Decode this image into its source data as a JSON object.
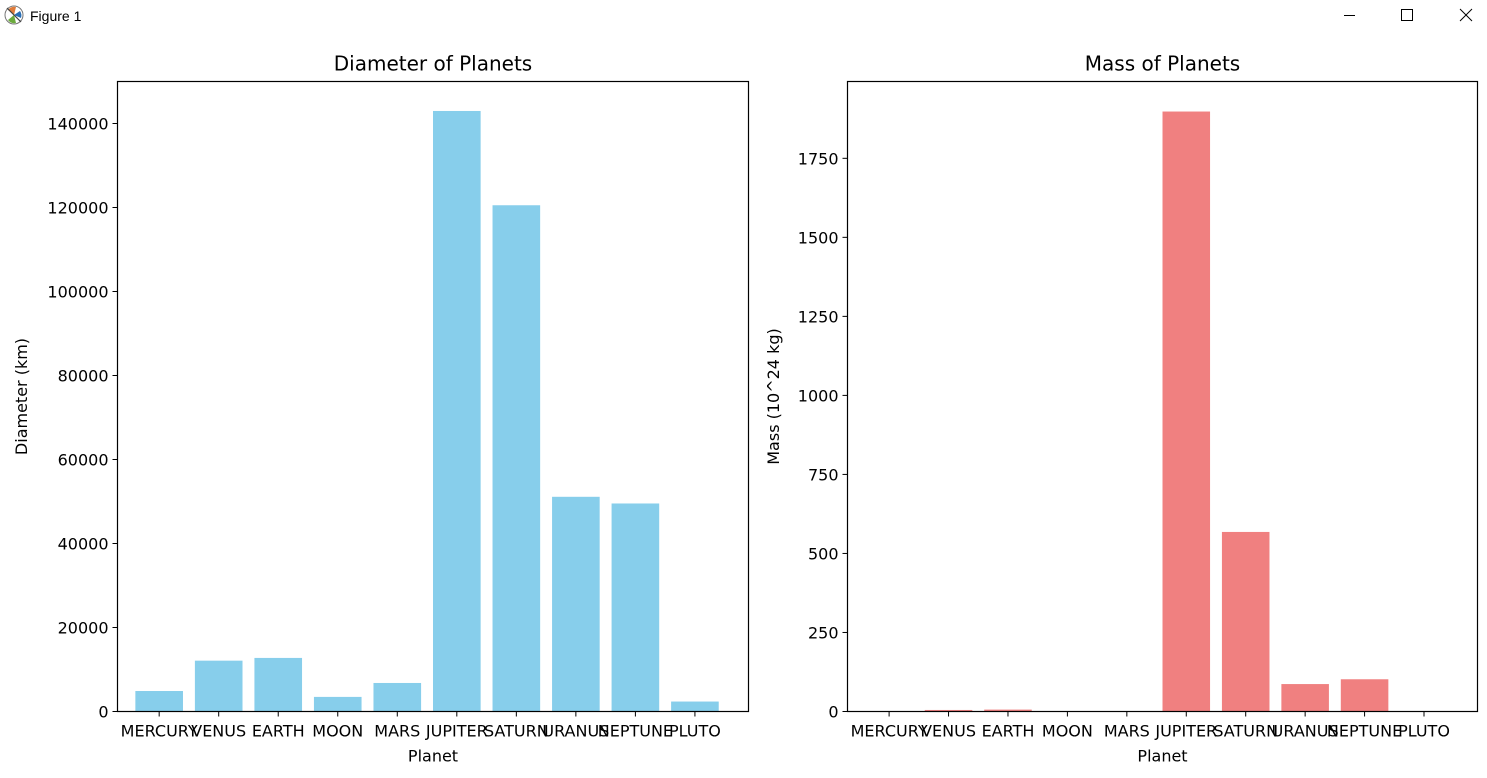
{
  "window": {
    "title": "Figure 1",
    "icon": "matplotlib-figure-icon",
    "controls": [
      "minimize-icon",
      "maximize-icon",
      "close-icon"
    ]
  },
  "chart_data": [
    {
      "type": "bar",
      "title": "Diameter of Planets",
      "xlabel": "Planet",
      "ylabel": "Diameter (km)",
      "categories": [
        "MERCURY",
        "VENUS",
        "EARTH",
        "MOON",
        "MARS",
        "JUPITER",
        "SATURN",
        "URANUS",
        "NEPTUNE",
        "PLUTO"
      ],
      "values": [
        4879,
        12104,
        12756,
        3475,
        6792,
        142984,
        120536,
        51118,
        49528,
        2370
      ],
      "ylim": [
        0,
        150000
      ],
      "yticks": [
        0,
        20000,
        40000,
        60000,
        80000,
        100000,
        120000,
        140000
      ],
      "color": "#87ceeb",
      "grid": false
    },
    {
      "type": "bar",
      "title": "Mass of Planets",
      "xlabel": "Planet",
      "ylabel": "Mass (10^24 kg)",
      "categories": [
        "MERCURY",
        "VENUS",
        "EARTH",
        "MOON",
        "MARS",
        "JUPITER",
        "SATURN",
        "URANUS",
        "NEPTUNE",
        "PLUTO"
      ],
      "values": [
        0.33,
        4.87,
        5.97,
        0.073,
        0.642,
        1898,
        568,
        86.8,
        102,
        0.0146
      ],
      "ylim": [
        0,
        1993
      ],
      "yticks": [
        0,
        250,
        500,
        750,
        1000,
        1250,
        1500,
        1750
      ],
      "color": "#f08080",
      "grid": false
    }
  ]
}
